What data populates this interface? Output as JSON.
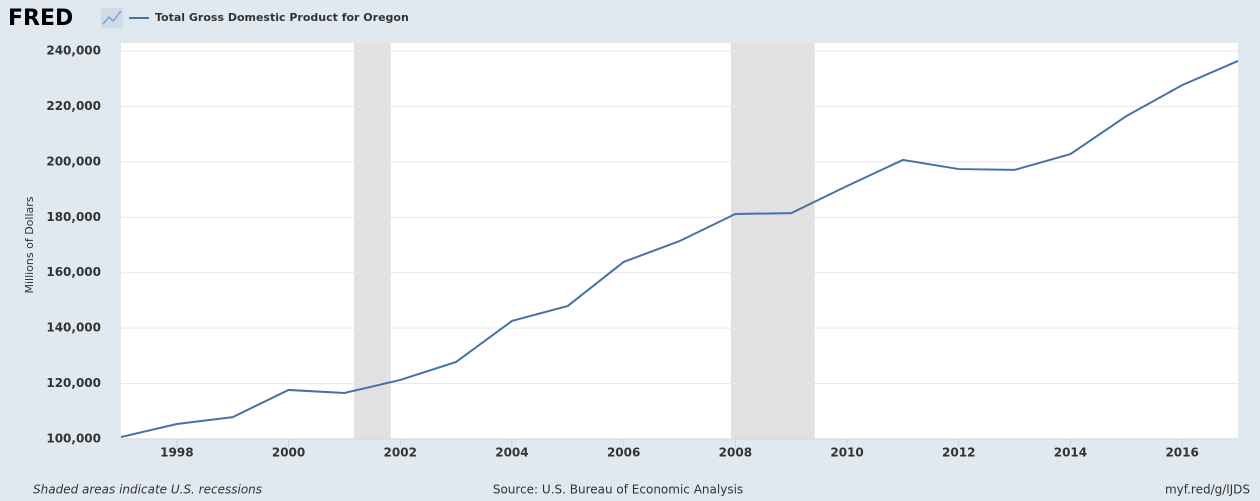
{
  "chart_data": {
    "type": "line",
    "logo": "FRED",
    "title": "Total Gross Domestic Product for Oregon",
    "y_label": "Millions of Dollars",
    "note": "Shaded areas indicate U.S. recessions",
    "source": "Source: U.S. Bureau of Economic Analysis",
    "link": "myf.red/g/lJDS",
    "x": [
      1997,
      1998,
      1999,
      2000,
      2001,
      2002,
      2003,
      2004,
      2005,
      2006,
      2007,
      2008,
      2009,
      2010,
      2011,
      2012,
      2013,
      2014,
      2015,
      2016,
      2017
    ],
    "series": [
      {
        "name": "Total Gross Domestic Product for Oregon",
        "color": "#4572a7",
        "values": [
          100700,
          105400,
          107900,
          117700,
          116600,
          121300,
          127800,
          142600,
          148000,
          163900,
          171400,
          181200,
          181500,
          191300,
          200700,
          197400,
          197100,
          202800,
          216500,
          227700,
          236400
        ]
      }
    ],
    "recessions": [
      [
        2001.17,
        2001.83
      ],
      [
        2007.92,
        2009.42
      ]
    ],
    "recession_color": "#e1e1e1",
    "xlim": [
      1997,
      2017
    ],
    "xticks": [
      1998,
      2000,
      2002,
      2004,
      2006,
      2008,
      2010,
      2012,
      2014,
      2016
    ],
    "ylim": [
      100000,
      240000
    ],
    "yticks": [
      {
        "value": 100000,
        "label": "100,000"
      },
      {
        "value": 120000,
        "label": "120,000"
      },
      {
        "value": 140000,
        "label": "140,000"
      },
      {
        "value": 160000,
        "label": "160,000"
      },
      {
        "value": 180000,
        "label": "180,000"
      },
      {
        "value": 200000,
        "label": "200,000"
      },
      {
        "value": 220000,
        "label": "220,000"
      },
      {
        "value": 240000,
        "label": "240,000"
      }
    ],
    "grid": true
  }
}
